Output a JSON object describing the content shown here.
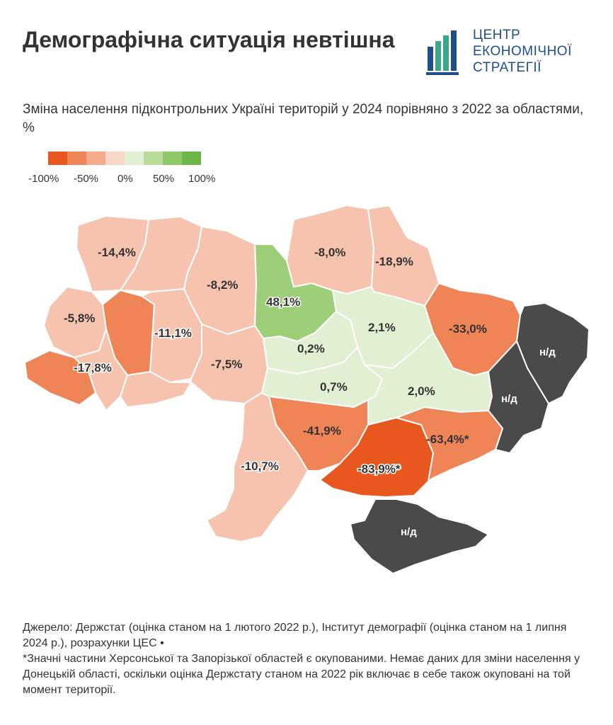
{
  "title": "Демографічна ситуація невтішна",
  "logo": {
    "line1": "ЦЕНТР",
    "line2": "ЕКОНОМІЧНОЇ",
    "line3": "СТРАТЕГІЇ",
    "color": "#1f4e8c",
    "accent": "#3aa68a"
  },
  "subtitle": "Зміна населення підконтрольних Україні територій у 2024 порівняно з 2022 за областями, %",
  "legend": {
    "colors": [
      "#e8581e",
      "#ef8456",
      "#f3ab8b",
      "#f9d7c8",
      "#e1efd3",
      "#b9dc9b",
      "#8fc86a",
      "#6cb548"
    ],
    "labels": [
      "-100%",
      "-50%",
      "0%",
      "50%",
      "100%"
    ]
  },
  "colors": {
    "no_data": "#4a4a4a",
    "strong_decline": "#e8581e",
    "decline": "#ef8456",
    "mild_decline": "#f3b69c",
    "slight_decline": "#f7cbb7",
    "slight_growth": "#e1efd3",
    "growth": "#9ccf78"
  },
  "regions": {
    "volyn": "-14,4%",
    "rivne": "",
    "zhytomyr": "-8,2%",
    "kyiv": "48,1%",
    "chernihiv": "-8,0%",
    "sumy": "-18,9%",
    "lviv": "-5,8%",
    "ternopil": "",
    "khmelnytskyi": "-11,1%",
    "vinnytsia": "-7,5%",
    "cherkasy": "0,2%",
    "poltava": "2,1%",
    "kharkiv": "-33,0%",
    "luhansk": "н/д",
    "zakarpattia": "",
    "ivano_frankivsk": "-17,8%",
    "chernivtsi": "",
    "kirovohrad": "0,7%",
    "dnipro": "2,0%",
    "donetsk": "н/д",
    "odesa": "-10,7%",
    "mykolaiv": "-41,9%",
    "kherson": "-83,9%*",
    "zaporizhzhia": "-63,4%*",
    "crimea": "н/д"
  },
  "source_line1": "Джерело: Держстат (оцінка станом на 1 лютого 2022 р.), Інститут демографії (оцінка станом на 1 липня 2024 р.), розрахунки ЦЕС •",
  "source_line2": "*Значні частини Херсонської та Запорізької областей є окупованими. Немає даних для зміни населення у Донецькій області, оскільки оцінка Держстату станом на 2022 рік включає в себе також окуповані на той момент території."
}
